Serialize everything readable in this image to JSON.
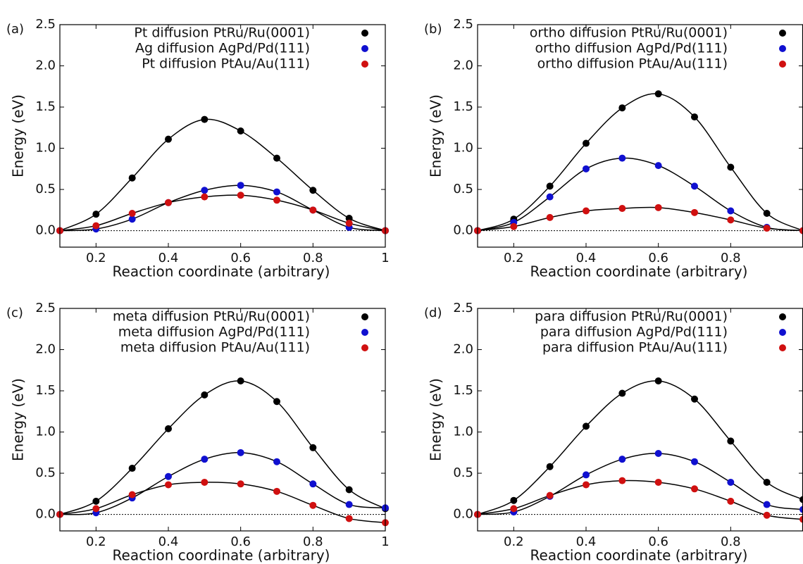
{
  "chart_data": [
    {
      "type": "line",
      "panel_label": "(a)",
      "xlabel": "Reaction coordinate (arbitrary)",
      "ylabel": "Energy (eV)",
      "x": [
        0.1,
        0.2,
        0.3,
        0.4,
        0.5,
        0.6,
        0.7,
        0.8,
        0.9,
        1.0
      ],
      "xlim": [
        0.1,
        1
      ],
      "xticks": [
        0.2,
        0.4,
        0.6,
        0.8,
        1
      ],
      "ylim": [
        -0.2,
        2.5
      ],
      "yticks": [
        {
          "value": 0,
          "label": "0.0"
        },
        0.5,
        {
          "value": 1,
          "label": "1.0"
        },
        1.5,
        {
          "value": 2,
          "label": "2.0"
        },
        2.5
      ],
      "series": [
        {
          "name": "Pt diffusion PtRu/Ru(0001)",
          "color": "#000000",
          "values": [
            0,
            0.2,
            0.64,
            1.11,
            1.35,
            1.21,
            0.88,
            0.49,
            0.15,
            0
          ]
        },
        {
          "name": "Ag diffusion AgPd/Pd(111)",
          "color": "#1010d0",
          "values": [
            0,
            0.02,
            0.14,
            0.34,
            0.49,
            0.55,
            0.47,
            0.25,
            0.04,
            0
          ]
        },
        {
          "name": "Pt diffusion PtAu/Au(111)",
          "color": "#d01010",
          "values": [
            0,
            0.06,
            0.21,
            0.34,
            0.41,
            0.43,
            0.37,
            0.25,
            0.09,
            0
          ]
        }
      ]
    },
    {
      "type": "line",
      "panel_label": "(b)",
      "xlabel": "Reaction coordinate (arbitrary)",
      "ylabel": "Energy (eV)",
      "x": [
        0.1,
        0.2,
        0.3,
        0.4,
        0.5,
        0.6,
        0.7,
        0.8,
        0.9,
        1.0
      ],
      "xlim": [
        0.1,
        1
      ],
      "xticks": [
        0.2,
        0.4,
        0.6,
        0.8
      ],
      "ylim": [
        -0.2,
        2.5
      ],
      "yticks": [
        {
          "value": 0,
          "label": "0.0"
        },
        0.5,
        {
          "value": 1,
          "label": "1.0"
        },
        1.5,
        {
          "value": 2,
          "label": "2.0"
        },
        2.5
      ],
      "series": [
        {
          "name": "ortho diffusion PtRu/Ru(0001)",
          "color": "#000000",
          "values": [
            0,
            0.14,
            0.54,
            1.06,
            1.49,
            1.66,
            1.38,
            0.77,
            0.21,
            0
          ]
        },
        {
          "name": "ortho diffusion AgPd/Pd(111)",
          "color": "#1010d0",
          "values": [
            0,
            0.1,
            0.41,
            0.75,
            0.88,
            0.79,
            0.54,
            0.24,
            0.04,
            0
          ]
        },
        {
          "name": "ortho diffusion PtAu/Au(111)",
          "color": "#d01010",
          "values": [
            0,
            0.05,
            0.16,
            0.24,
            0.27,
            0.28,
            0.22,
            0.13,
            0.03,
            0
          ]
        }
      ]
    },
    {
      "type": "line",
      "panel_label": "(c)",
      "xlabel": "Reaction coordinate (arbitrary)",
      "ylabel": "Energy (eV)",
      "x": [
        0.1,
        0.2,
        0.3,
        0.4,
        0.5,
        0.6,
        0.7,
        0.8,
        0.9,
        1.0
      ],
      "xlim": [
        0.1,
        1
      ],
      "xticks": [
        0.2,
        0.4,
        0.6,
        0.8,
        1
      ],
      "ylim": [
        -0.2,
        2.5
      ],
      "yticks": [
        {
          "value": 0,
          "label": "0.0"
        },
        0.5,
        {
          "value": 1,
          "label": "1.0"
        },
        1.5,
        {
          "value": 2,
          "label": "2.0"
        },
        2.5
      ],
      "series": [
        {
          "name": "meta diffusion PtRu/Ru(0001)",
          "color": "#000000",
          "values": [
            0,
            0.16,
            0.56,
            1.04,
            1.45,
            1.62,
            1.37,
            0.81,
            0.3,
            0.07
          ]
        },
        {
          "name": "meta diffusion AgPd/Pd(111)",
          "color": "#1010d0",
          "values": [
            0,
            0.02,
            0.2,
            0.46,
            0.67,
            0.75,
            0.64,
            0.37,
            0.12,
            0.08
          ]
        },
        {
          "name": "meta diffusion PtAu/Au(111)",
          "color": "#d01010",
          "values": [
            0,
            0.07,
            0.24,
            0.36,
            0.39,
            0.37,
            0.28,
            0.11,
            -0.05,
            -0.1
          ]
        }
      ]
    },
    {
      "type": "line",
      "panel_label": "(d)",
      "xlabel": "Reaction coordinate (arbitrary)",
      "ylabel": "Energy (eV)",
      "x": [
        0.1,
        0.2,
        0.3,
        0.4,
        0.5,
        0.6,
        0.7,
        0.8,
        0.9,
        1.0
      ],
      "xlim": [
        0.1,
        1
      ],
      "xticks": [
        0.2,
        0.4,
        0.6,
        0.8
      ],
      "ylim": [
        -0.2,
        2.5
      ],
      "yticks": [
        {
          "value": 0,
          "label": "0.0"
        },
        0.5,
        {
          "value": 1,
          "label": "1.0"
        },
        1.5,
        {
          "value": 2,
          "label": "2.0"
        },
        2.5
      ],
      "series": [
        {
          "name": "para diffusion PtRu/Ru(0001)",
          "color": "#000000",
          "values": [
            0,
            0.17,
            0.58,
            1.07,
            1.47,
            1.62,
            1.4,
            0.89,
            0.39,
            0.18
          ]
        },
        {
          "name": "para diffusion AgPd/Pd(111)",
          "color": "#1010d0",
          "values": [
            0,
            0.03,
            0.22,
            0.48,
            0.67,
            0.74,
            0.64,
            0.39,
            0.12,
            0.06
          ]
        },
        {
          "name": "para diffusion PtAu/Au(111)",
          "color": "#d01010",
          "values": [
            0,
            0.07,
            0.23,
            0.36,
            0.41,
            0.39,
            0.31,
            0.16,
            -0.01,
            -0.06
          ]
        }
      ]
    }
  ]
}
